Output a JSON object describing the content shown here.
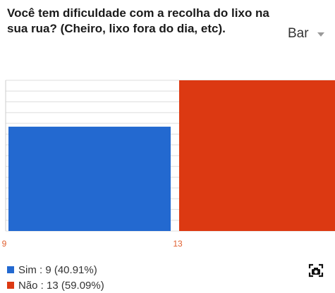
{
  "question": "Você tem dificuldade com a recolha do lixo na sua rua? (Cheiro, lixo fora do dia, etc).",
  "chart_type_selector": {
    "value": "Bar"
  },
  "icons": {
    "dropdown": "chevron-down-icon",
    "export": "screenshot-icon"
  },
  "colors": {
    "sim": "#2369d0",
    "nao": "#dc3912",
    "grid": "#dddddd",
    "tick": "#e06030"
  },
  "legend": [
    {
      "text": "Sim : 9 (40.91%)"
    },
    {
      "text": "Não : 13 (59.09%)"
    }
  ],
  "chart_data": {
    "type": "bar",
    "categories": [
      "Sim",
      "Não"
    ],
    "values": [
      9,
      13
    ],
    "percentages": [
      40.91,
      59.09
    ],
    "x_ticks": [
      "9",
      "13"
    ],
    "ylim": [
      0,
      13
    ],
    "grid": true,
    "legend_position": "bottom-left"
  }
}
